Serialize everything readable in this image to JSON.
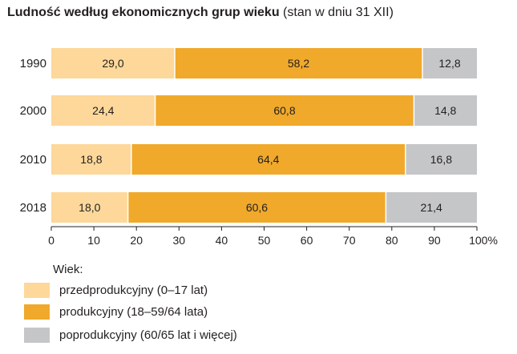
{
  "title": {
    "bold": "Ludność według ekonomicznych grup wieku",
    "normal": "(stan w dniu 31 XII)"
  },
  "colors": {
    "pre": "#fdd89a",
    "working": "#f0a92a",
    "post": "#c5c6c8",
    "grid": "#231f20"
  },
  "legend": {
    "title": "Wiek:",
    "items": [
      {
        "label": "przedprodukcyjny (0–17 lat)",
        "color": "#fdd89a"
      },
      {
        "label": "produkcyjny (18–59/64 lata)",
        "color": "#f0a92a"
      },
      {
        "label": "poprodukcyjny (60/65 lat i więcej)",
        "color": "#c5c6c8"
      }
    ]
  },
  "chart_data": {
    "type": "bar",
    "orientation": "horizontal",
    "stacked": true,
    "categories": [
      "1990",
      "2000",
      "2010",
      "2018"
    ],
    "series": [
      {
        "name": "przedprodukcyjny (0–17 lat)",
        "values": [
          29.0,
          24.4,
          18.8,
          18.0
        ],
        "labels": [
          "29,0",
          "24,4",
          "18,8",
          "18,0"
        ]
      },
      {
        "name": "produkcyjny (18–59/64 lata)",
        "values": [
          58.2,
          60.8,
          64.4,
          60.6
        ],
        "labels": [
          "58,2",
          "60,8",
          "64,4",
          "60,6"
        ]
      },
      {
        "name": "poprodukcyjny (60/65 lat i więcej)",
        "values": [
          12.8,
          14.8,
          16.8,
          21.4
        ],
        "labels": [
          "12,8",
          "14,8",
          "16,8",
          "21,4"
        ]
      }
    ],
    "xlim": [
      0,
      100
    ],
    "xticks": [
      "0",
      "10",
      "20",
      "30",
      "40",
      "50",
      "60",
      "70",
      "80",
      "90",
      "100%"
    ],
    "grid": false,
    "legend_position": "bottom"
  }
}
